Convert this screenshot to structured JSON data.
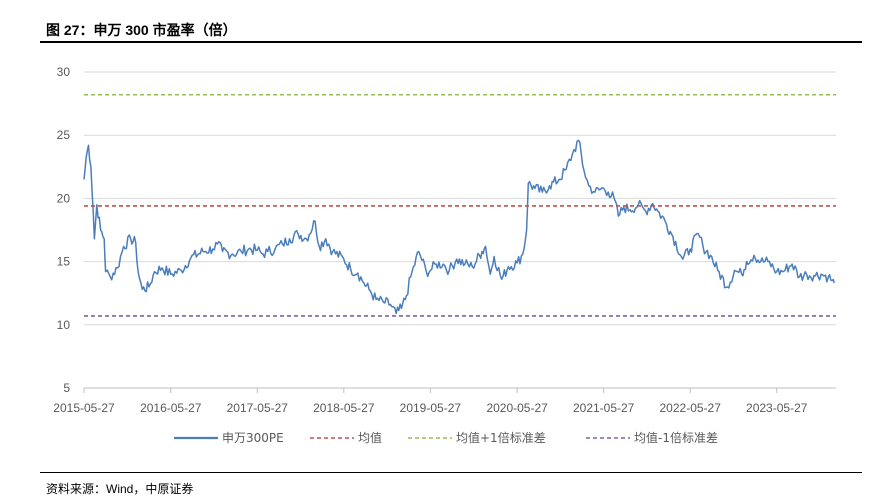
{
  "header": {
    "title": "图 27：申万 300 市盈率（倍）"
  },
  "footer": {
    "source": "资料来源：Wind，中原证券"
  },
  "chart_data": {
    "type": "line",
    "title": "",
    "xlabel": "",
    "ylabel": "",
    "ylim": [
      5,
      30
    ],
    "yticks": [
      5,
      10,
      15,
      20,
      25,
      30
    ],
    "xlim": [
      "2015-05-27",
      "2024-02-01"
    ],
    "xticks": [
      "2015-05-27",
      "2016-05-27",
      "2017-05-27",
      "2018-05-27",
      "2019-05-27",
      "2020-05-27",
      "2021-05-27",
      "2022-05-27",
      "2023-05-27"
    ],
    "grid": "horizontal",
    "legend": "bottom",
    "series": [
      {
        "name": "申万300PE",
        "color": "#4a7ebb",
        "style": "solid",
        "points": [
          [
            "2015-05-27",
            21.5
          ],
          [
            "2015-06-05",
            23.2
          ],
          [
            "2015-06-15",
            24.2
          ],
          [
            "2015-06-25",
            22.5
          ],
          [
            "2015-07-05",
            19.0
          ],
          [
            "2015-07-10",
            16.8
          ],
          [
            "2015-07-20",
            19.5
          ],
          [
            "2015-08-05",
            17.5
          ],
          [
            "2015-08-20",
            16.8
          ],
          [
            "2015-08-26",
            14.2
          ],
          [
            "2015-09-15",
            13.8
          ],
          [
            "2015-10-15",
            14.5
          ],
          [
            "2015-11-10",
            16.2
          ],
          [
            "2015-12-10",
            16.8
          ],
          [
            "2015-12-31",
            16.5
          ],
          [
            "2016-01-10",
            14.2
          ],
          [
            "2016-01-28",
            12.8
          ],
          [
            "2016-02-25",
            13.0
          ],
          [
            "2016-03-20",
            14.2
          ],
          [
            "2016-04-20",
            14.5
          ],
          [
            "2016-05-27",
            14.0
          ],
          [
            "2016-07-10",
            14.3
          ],
          [
            "2016-08-20",
            15.3
          ],
          [
            "2016-10-10",
            15.8
          ],
          [
            "2016-11-20",
            16.0
          ],
          [
            "2016-12-10",
            16.4
          ],
          [
            "2016-12-31",
            15.8
          ],
          [
            "2017-02-10",
            15.6
          ],
          [
            "2017-03-20",
            15.8
          ],
          [
            "2017-04-20",
            16.0
          ],
          [
            "2017-05-27",
            15.9
          ],
          [
            "2017-06-20",
            15.6
          ],
          [
            "2017-07-10",
            15.8
          ],
          [
            "2017-08-10",
            16.0
          ],
          [
            "2017-09-10",
            16.4
          ],
          [
            "2017-10-10",
            16.8
          ],
          [
            "2017-11-15",
            17.2
          ],
          [
            "2017-12-20",
            16.8
          ],
          [
            "2018-01-26",
            18.2
          ],
          [
            "2018-02-12",
            16.2
          ],
          [
            "2018-03-12",
            16.8
          ],
          [
            "2018-04-10",
            15.8
          ],
          [
            "2018-05-27",
            15.2
          ],
          [
            "2018-06-25",
            14.4
          ],
          [
            "2018-07-25",
            14.1
          ],
          [
            "2018-08-20",
            13.3
          ],
          [
            "2018-09-10",
            12.8
          ],
          [
            "2018-10-10",
            12.0
          ],
          [
            "2018-11-10",
            11.8
          ],
          [
            "2018-12-10",
            11.6
          ],
          [
            "2019-01-03",
            10.9
          ],
          [
            "2019-01-25",
            11.3
          ],
          [
            "2019-02-15",
            12.3
          ],
          [
            "2019-03-05",
            13.8
          ],
          [
            "2019-04-08",
            15.8
          ],
          [
            "2019-05-10",
            14.2
          ],
          [
            "2019-05-27",
            14.3
          ],
          [
            "2019-06-20",
            14.8
          ],
          [
            "2019-07-20",
            14.8
          ],
          [
            "2019-08-15",
            14.3
          ],
          [
            "2019-09-15",
            15.2
          ],
          [
            "2019-10-20",
            14.8
          ],
          [
            "2019-11-20",
            14.6
          ],
          [
            "2019-12-31",
            15.8
          ],
          [
            "2020-01-15",
            16.2
          ],
          [
            "2020-02-04",
            14.0
          ],
          [
            "2020-02-20",
            15.4
          ],
          [
            "2020-03-23",
            13.6
          ],
          [
            "2020-04-20",
            14.6
          ],
          [
            "2020-05-27",
            14.9
          ],
          [
            "2020-06-20",
            15.6
          ],
          [
            "2020-07-06",
            17.5
          ],
          [
            "2020-07-13",
            21.2
          ],
          [
            "2020-08-10",
            20.8
          ],
          [
            "2020-09-10",
            20.5
          ],
          [
            "2020-10-10",
            21.0
          ],
          [
            "2020-11-20",
            21.5
          ],
          [
            "2020-12-20",
            22.3
          ],
          [
            "2021-01-15",
            23.5
          ],
          [
            "2021-02-10",
            24.6
          ],
          [
            "2021-03-05",
            22.2
          ],
          [
            "2021-03-25",
            21.0
          ],
          [
            "2021-04-20",
            20.5
          ],
          [
            "2021-05-27",
            20.8
          ],
          [
            "2021-06-15",
            20.5
          ],
          [
            "2021-07-10",
            20.0
          ],
          [
            "2021-07-28",
            18.6
          ],
          [
            "2021-08-20",
            19.3
          ],
          [
            "2021-09-15",
            19.1
          ],
          [
            "2021-10-20",
            19.5
          ],
          [
            "2021-11-20",
            19.0
          ],
          [
            "2021-12-20",
            19.6
          ],
          [
            "2022-01-10",
            19.0
          ],
          [
            "2022-02-10",
            18.2
          ],
          [
            "2022-03-15",
            17.0
          ],
          [
            "2022-04-26",
            15.2
          ],
          [
            "2022-05-27",
            16.0
          ],
          [
            "2022-06-30",
            17.2
          ],
          [
            "2022-07-20",
            16.2
          ],
          [
            "2022-08-20",
            15.5
          ],
          [
            "2022-09-20",
            14.3
          ],
          [
            "2022-10-31",
            13.0
          ],
          [
            "2022-11-30",
            14.3
          ],
          [
            "2022-12-30",
            14.0
          ],
          [
            "2023-01-20",
            15.0
          ],
          [
            "2023-02-20",
            15.5
          ],
          [
            "2023-03-20",
            15.0
          ],
          [
            "2023-04-20",
            15.0
          ],
          [
            "2023-05-27",
            14.2
          ],
          [
            "2023-06-20",
            14.2
          ],
          [
            "2023-07-31",
            14.8
          ],
          [
            "2023-08-31",
            13.8
          ],
          [
            "2023-09-30",
            14.0
          ],
          [
            "2023-10-31",
            13.9
          ],
          [
            "2023-11-30",
            14.0
          ],
          [
            "2023-12-31",
            13.8
          ],
          [
            "2024-01-15",
            13.5
          ],
          [
            "2024-01-25",
            13.3
          ]
        ]
      },
      {
        "name": "均值",
        "color": "#c0504d",
        "style": "dashed",
        "value": 19.4
      },
      {
        "name": "均值+1倍标准差",
        "color": "#9bbb59",
        "style": "dashed",
        "value": 28.2
      },
      {
        "name": "均值-1倍标准差",
        "color": "#8064a2",
        "style": "dashed",
        "value": 10.7
      }
    ]
  }
}
